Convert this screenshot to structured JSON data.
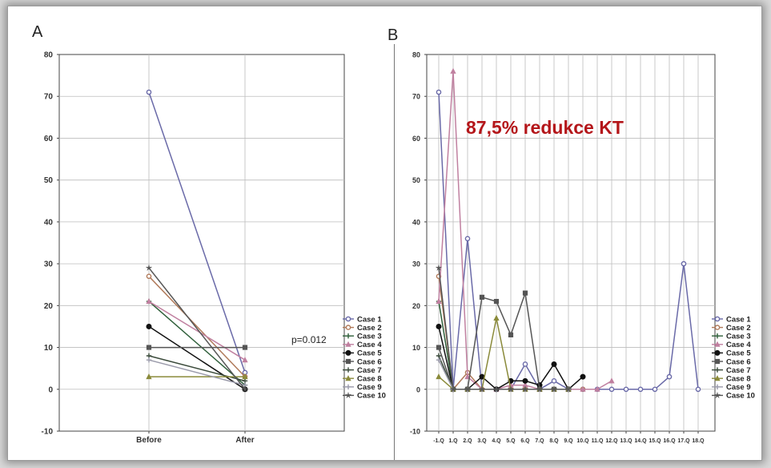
{
  "chart_data": [
    {
      "type": "line",
      "panel_label": "A",
      "categories": [
        "Before",
        "After"
      ],
      "ylim": [
        -10,
        80
      ],
      "yticks": [
        -10,
        0,
        10,
        20,
        30,
        40,
        50,
        60,
        70,
        80
      ],
      "grid": true,
      "legend_position": "right",
      "annotation": "p=0.012",
      "series": [
        {
          "name": "Case 1",
          "color": "#6a6aa8",
          "marker": "circle",
          "values": [
            71,
            4
          ]
        },
        {
          "name": "Case 2",
          "color": "#b07a5a",
          "marker": "circle",
          "values": [
            27,
            3
          ]
        },
        {
          "name": "Case 3",
          "color": "#2f5f3a",
          "marker": "plus",
          "values": [
            21,
            1
          ]
        },
        {
          "name": "Case 4",
          "color": "#c080a0",
          "marker": "triangle",
          "values": [
            21,
            7
          ]
        },
        {
          "name": "Case 5",
          "color": "#111111",
          "marker": "filled-circle",
          "values": [
            15,
            0
          ]
        },
        {
          "name": "Case 6",
          "color": "#555555",
          "marker": "square",
          "values": [
            10,
            10
          ]
        },
        {
          "name": "Case 7",
          "color": "#3a4a3a",
          "marker": "plus",
          "values": [
            8,
            2
          ]
        },
        {
          "name": "Case 8",
          "color": "#8a8a3a",
          "marker": "triangle",
          "values": [
            3,
            3
          ]
        },
        {
          "name": "Case 9",
          "color": "#9a9aaa",
          "marker": "plus",
          "values": [
            7,
            1
          ]
        },
        {
          "name": "Case 10",
          "color": "#555555",
          "marker": "star",
          "values": [
            29,
            0
          ]
        }
      ]
    },
    {
      "type": "line",
      "panel_label": "B",
      "categories": [
        "-1.Q",
        "1.Q",
        "2.Q",
        "3.Q",
        "4.Q",
        "5.Q",
        "6.Q",
        "7.Q",
        "8.Q",
        "9.Q",
        "10.Q",
        "11.Q",
        "12.Q",
        "13.Q",
        "14.Q",
        "15.Q",
        "16.Q",
        "17.Q",
        "18.Q"
      ],
      "ylim": [
        -10,
        80
      ],
      "yticks": [
        -10,
        0,
        10,
        20,
        30,
        40,
        50,
        60,
        70,
        80
      ],
      "grid": true,
      "legend_position": "right",
      "annotation": "87,5% redukce KT",
      "series": [
        {
          "name": "Case 1",
          "color": "#6a6aa8",
          "marker": "circle",
          "values": [
            71,
            0,
            36,
            0,
            0,
            0,
            6,
            0,
            2,
            0,
            0,
            0,
            0,
            0,
            0,
            0,
            3,
            30,
            0
          ]
        },
        {
          "name": "Case 2",
          "color": "#b07a5a",
          "marker": "circle",
          "values": [
            27,
            0,
            4,
            0,
            0,
            0,
            0,
            0,
            0,
            0,
            0,
            null,
            null,
            null,
            null,
            null,
            null,
            null,
            null
          ]
        },
        {
          "name": "Case 3",
          "color": "#2f5f3a",
          "marker": "plus",
          "values": [
            21,
            0,
            0,
            0,
            0,
            0,
            0,
            0,
            0,
            0,
            0,
            null,
            null,
            null,
            null,
            null,
            null,
            null,
            null
          ]
        },
        {
          "name": "Case 4",
          "color": "#c080a0",
          "marker": "triangle",
          "values": [
            21,
            76,
            3,
            0,
            0,
            1,
            1,
            0,
            0,
            0,
            0,
            0,
            2,
            null,
            null,
            null,
            null,
            null,
            null
          ]
        },
        {
          "name": "Case 5",
          "color": "#111111",
          "marker": "filled-circle",
          "values": [
            15,
            0,
            0,
            3,
            0,
            2,
            2,
            1,
            6,
            0,
            3,
            null,
            null,
            null,
            null,
            null,
            null,
            null,
            null
          ]
        },
        {
          "name": "Case 6",
          "color": "#555555",
          "marker": "square",
          "values": [
            10,
            0,
            0,
            22,
            21,
            13,
            23,
            0,
            0,
            0,
            null,
            null,
            null,
            null,
            null,
            null,
            null,
            null,
            null
          ]
        },
        {
          "name": "Case 7",
          "color": "#3a4a3a",
          "marker": "plus",
          "values": [
            8,
            0,
            0,
            0,
            0,
            0,
            0,
            0,
            0,
            0,
            null,
            null,
            null,
            null,
            null,
            null,
            null,
            null,
            null
          ]
        },
        {
          "name": "Case 8",
          "color": "#8a8a3a",
          "marker": "triangle",
          "values": [
            3,
            0,
            0,
            0,
            17,
            0,
            0,
            0,
            0,
            0,
            null,
            null,
            null,
            null,
            null,
            null,
            null,
            null,
            null
          ]
        },
        {
          "name": "Case 9",
          "color": "#9a9aaa",
          "marker": "plus",
          "values": [
            7,
            0,
            0,
            0,
            0,
            0,
            0,
            0,
            0,
            0,
            null,
            null,
            null,
            null,
            null,
            null,
            null,
            null,
            null
          ]
        },
        {
          "name": "Case 10",
          "color": "#555555",
          "marker": "star",
          "values": [
            29,
            0,
            0,
            0,
            0,
            0,
            0,
            0,
            0,
            0,
            null,
            null,
            null,
            null,
            null,
            null,
            null,
            null,
            null
          ]
        }
      ]
    }
  ]
}
